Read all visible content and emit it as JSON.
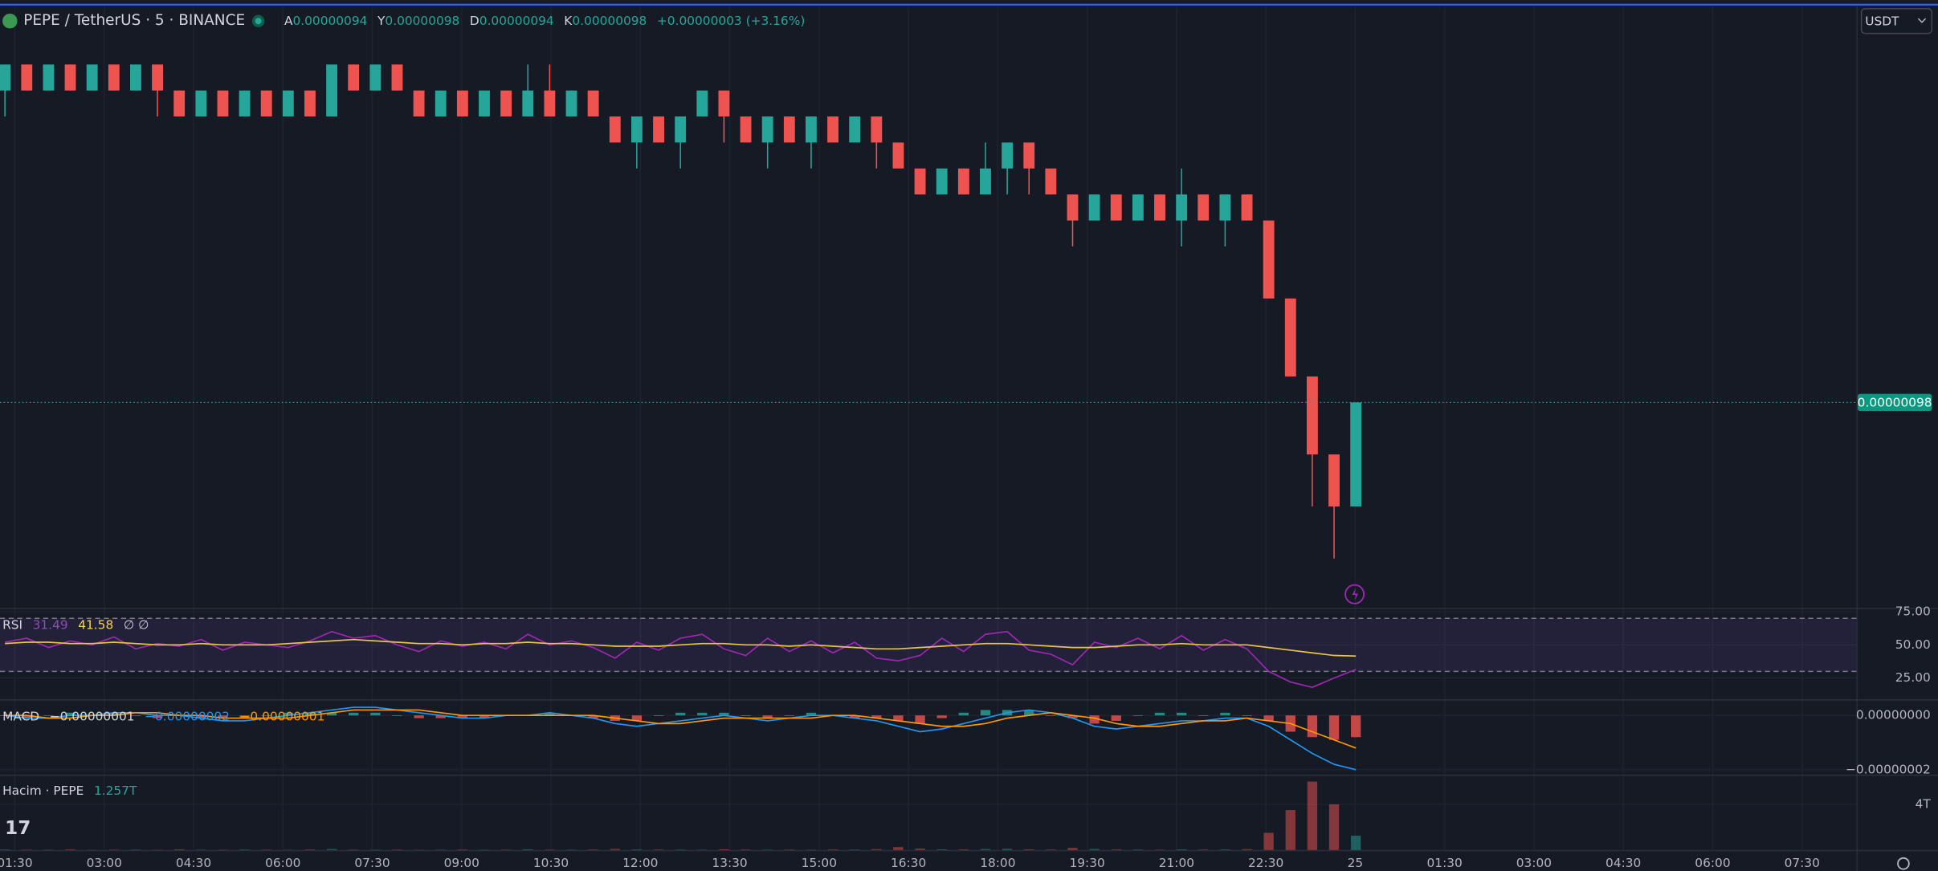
{
  "header": {
    "symbol": "PEPE / TetherUS · 5 · BINANCE",
    "ohlc": [
      {
        "key": "A",
        "value": "0.00000094"
      },
      {
        "key": "Y",
        "value": "0.00000098"
      },
      {
        "key": "D",
        "value": "0.00000094"
      },
      {
        "key": "K",
        "value": "0.00000098"
      }
    ],
    "change": "+0.00000003 (+3.16%)"
  },
  "currency": "USDT",
  "chart_data": [
    {
      "type": "candlestick",
      "up_color": "#26a69a",
      "down_color": "#ef5350",
      "ylim": [
        9.01e-07,
        1.131e-06
      ],
      "last_price_label": "0.00000098",
      "open": [
        1.1e-06,
        1.11e-06,
        1.1e-06,
        1.11e-06,
        1.1e-06,
        1.11e-06,
        1.1e-06,
        1.11e-06,
        1.1e-06,
        1.09e-06,
        1.1e-06,
        1.09e-06,
        1.1e-06,
        1.09e-06,
        1.1e-06,
        1.09e-06,
        1.11e-06,
        1.1e-06,
        1.11e-06,
        1.1e-06,
        1.09e-06,
        1.1e-06,
        1.09e-06,
        1.1e-06,
        1.09e-06,
        1.1e-06,
        1.09e-06,
        1.1e-06,
        1.09e-06,
        1.08e-06,
        1.09e-06,
        1.08e-06,
        1.09e-06,
        1.1e-06,
        1.09e-06,
        1.08e-06,
        1.09e-06,
        1.08e-06,
        1.09e-06,
        1.08e-06,
        1.09e-06,
        1.08e-06,
        1.07e-06,
        1.06e-06,
        1.07e-06,
        1.06e-06,
        1.07e-06,
        1.08e-06,
        1.07e-06,
        1.06e-06,
        1.05e-06,
        1.06e-06,
        1.05e-06,
        1.06e-06,
        1.05e-06,
        1.06e-06,
        1.05e-06,
        1.06e-06,
        1.05e-06,
        1.02e-06,
        9.9e-07,
        9.6e-07,
        9.4e-07
      ],
      "high": [
        1.11e-06,
        1.11e-06,
        1.11e-06,
        1.11e-06,
        1.11e-06,
        1.11e-06,
        1.11e-06,
        1.11e-06,
        1.1e-06,
        1.1e-06,
        1.1e-06,
        1.1e-06,
        1.1e-06,
        1.1e-06,
        1.1e-06,
        1.11e-06,
        1.11e-06,
        1.11e-06,
        1.11e-06,
        1.1e-06,
        1.1e-06,
        1.1e-06,
        1.1e-06,
        1.1e-06,
        1.11e-06,
        1.11e-06,
        1.1e-06,
        1.1e-06,
        1.09e-06,
        1.09e-06,
        1.09e-06,
        1.09e-06,
        1.1e-06,
        1.1e-06,
        1.09e-06,
        1.09e-06,
        1.09e-06,
        1.09e-06,
        1.09e-06,
        1.09e-06,
        1.09e-06,
        1.08e-06,
        1.07e-06,
        1.07e-06,
        1.07e-06,
        1.08e-06,
        1.08e-06,
        1.08e-06,
        1.07e-06,
        1.06e-06,
        1.06e-06,
        1.06e-06,
        1.06e-06,
        1.06e-06,
        1.07e-06,
        1.06e-06,
        1.06e-06,
        1.06e-06,
        1.05e-06,
        1.02e-06,
        9.9e-07,
        9.6e-07,
        9.8e-07
      ],
      "low": [
        1.09e-06,
        1.1e-06,
        1.1e-06,
        1.1e-06,
        1.1e-06,
        1.1e-06,
        1.1e-06,
        1.09e-06,
        1.09e-06,
        1.09e-06,
        1.09e-06,
        1.09e-06,
        1.09e-06,
        1.09e-06,
        1.09e-06,
        1.09e-06,
        1.1e-06,
        1.1e-06,
        1.1e-06,
        1.09e-06,
        1.09e-06,
        1.09e-06,
        1.09e-06,
        1.09e-06,
        1.09e-06,
        1.09e-06,
        1.09e-06,
        1.09e-06,
        1.08e-06,
        1.07e-06,
        1.08e-06,
        1.07e-06,
        1.09e-06,
        1.08e-06,
        1.08e-06,
        1.07e-06,
        1.08e-06,
        1.07e-06,
        1.08e-06,
        1.08e-06,
        1.07e-06,
        1.07e-06,
        1.06e-06,
        1.06e-06,
        1.06e-06,
        1.06e-06,
        1.06e-06,
        1.06e-06,
        1.06e-06,
        1.04e-06,
        1.05e-06,
        1.05e-06,
        1.05e-06,
        1.05e-06,
        1.04e-06,
        1.05e-06,
        1.04e-06,
        1.05e-06,
        1.02e-06,
        9.9e-07,
        9.4e-07,
        9.2e-07,
        9.4e-07
      ],
      "close": [
        1.11e-06,
        1.1e-06,
        1.11e-06,
        1.1e-06,
        1.11e-06,
        1.1e-06,
        1.11e-06,
        1.1e-06,
        1.09e-06,
        1.1e-06,
        1.09e-06,
        1.1e-06,
        1.09e-06,
        1.1e-06,
        1.09e-06,
        1.11e-06,
        1.1e-06,
        1.11e-06,
        1.1e-06,
        1.09e-06,
        1.1e-06,
        1.09e-06,
        1.1e-06,
        1.09e-06,
        1.1e-06,
        1.09e-06,
        1.1e-06,
        1.09e-06,
        1.08e-06,
        1.09e-06,
        1.08e-06,
        1.09e-06,
        1.1e-06,
        1.09e-06,
        1.08e-06,
        1.09e-06,
        1.08e-06,
        1.09e-06,
        1.08e-06,
        1.09e-06,
        1.08e-06,
        1.07e-06,
        1.06e-06,
        1.07e-06,
        1.06e-06,
        1.07e-06,
        1.08e-06,
        1.07e-06,
        1.06e-06,
        1.05e-06,
        1.06e-06,
        1.05e-06,
        1.06e-06,
        1.05e-06,
        1.06e-06,
        1.05e-06,
        1.06e-06,
        1.05e-06,
        1.02e-06,
        9.9e-07,
        9.6e-07,
        9.4e-07,
        9.8e-07
      ]
    },
    {
      "type": "rsi",
      "title": "RSI",
      "legend": [
        "31.49",
        "41.58",
        "∅ ∅"
      ],
      "rsi_color": "#9c27b0",
      "ma_color": "#e8c547",
      "ylim": [
        9,
        77
      ],
      "band": [
        30,
        70
      ],
      "band_color": "#7e57c2",
      "yticks": [
        {
          "value": 75,
          "label": "75.00"
        },
        {
          "value": 50,
          "label": "50.00"
        },
        {
          "value": 25,
          "label": "25.00"
        }
      ],
      "rsi": [
        52,
        55,
        48,
        53,
        50,
        56,
        47,
        51,
        49,
        54,
        46,
        52,
        50,
        48,
        53,
        60,
        55,
        57,
        50,
        45,
        53,
        49,
        52,
        47,
        58,
        50,
        53,
        48,
        40,
        52,
        46,
        55,
        58,
        47,
        42,
        55,
        45,
        53,
        44,
        52,
        40,
        38,
        42,
        55,
        45,
        58,
        60,
        46,
        43,
        35,
        52,
        48,
        55,
        47,
        57,
        46,
        54,
        47,
        30,
        22,
        18,
        25,
        31.49
      ],
      "ma": [
        51,
        52,
        52,
        51,
        51,
        52,
        51,
        50,
        50,
        51,
        50,
        50,
        50,
        51,
        52,
        53,
        54,
        53,
        52,
        51,
        51,
        50,
        51,
        51,
        52,
        51,
        51,
        50,
        49,
        49,
        49,
        50,
        51,
        51,
        50,
        50,
        49,
        50,
        49,
        48,
        47,
        47,
        48,
        49,
        50,
        51,
        51,
        50,
        49,
        48,
        48,
        49,
        50,
        50,
        51,
        50,
        50,
        50,
        48,
        46,
        44,
        42,
        41.58
      ]
    },
    {
      "type": "macd",
      "title": "MACD",
      "legend": [
        "−0.00000001",
        "−0.00000002",
        "−0.00000001"
      ],
      "macd_color": "#2196f3",
      "signal_color": "#ff9800",
      "up_color": "#26a69a",
      "down_color": "#ef5350",
      "ylim": [
        -2.18e-08,
        5.5e-09
      ],
      "yticks": [
        {
          "value": 0,
          "label": "0.00000000"
        },
        {
          "value": -2e-08,
          "label": "−0.00000002"
        }
      ],
      "histogram": [
        0,
        -1e-09,
        0,
        1e-09,
        0,
        1e-09,
        0,
        -1e-09,
        0,
        -1e-09,
        -1e-09,
        -1e-09,
        0,
        1e-09,
        1e-09,
        1e-09,
        1e-09,
        1e-09,
        0,
        -1e-09,
        -1e-09,
        -1e-09,
        -1e-09,
        0,
        0,
        1e-09,
        0,
        -1e-09,
        -2e-09,
        -2e-09,
        0,
        1e-09,
        1e-09,
        1e-09,
        0,
        -1e-09,
        0,
        1e-09,
        0,
        -1e-09,
        -1e-09,
        -2e-09,
        -3e-09,
        -1e-09,
        1e-09,
        2e-09,
        2e-09,
        2e-09,
        0,
        -1e-09,
        -3e-09,
        -2e-09,
        0,
        1e-09,
        1e-09,
        0,
        1e-09,
        0,
        -2e-09,
        -6e-09,
        -8e-09,
        -9e-09,
        -8e-09
      ],
      "macd": [
        0,
        -1e-09,
        -1e-09,
        0,
        0,
        1e-09,
        1e-09,
        0,
        0,
        -1e-09,
        -2e-09,
        -2e-09,
        -1e-09,
        0,
        1e-09,
        2e-09,
        3e-09,
        3e-09,
        2e-09,
        1e-09,
        0,
        -1e-09,
        -1e-09,
        0,
        0,
        1e-09,
        0,
        -1e-09,
        -3e-09,
        -4e-09,
        -3e-09,
        -2e-09,
        -1e-09,
        0,
        -1e-09,
        -2e-09,
        -1e-09,
        0,
        0,
        -1e-09,
        -2e-09,
        -4e-09,
        -6e-09,
        -5e-09,
        -3e-09,
        -1e-09,
        1e-09,
        2e-09,
        1e-09,
        -1e-09,
        -4e-09,
        -5e-09,
        -4e-09,
        -3e-09,
        -2e-09,
        -2e-09,
        -1e-09,
        -1e-09,
        -4e-09,
        -9e-09,
        -1.4e-08,
        -1.8e-08,
        -2e-08
      ],
      "signal": [
        0,
        0,
        -1e-09,
        -1e-09,
        0,
        0,
        1e-09,
        1e-09,
        0,
        0,
        -1e-09,
        -1e-09,
        -1e-09,
        -1e-09,
        0,
        1e-09,
        2e-09,
        2e-09,
        2e-09,
        2e-09,
        1e-09,
        0,
        0,
        0,
        0,
        0,
        0,
        0,
        -1e-09,
        -2e-09,
        -3e-09,
        -3e-09,
        -2e-09,
        -1e-09,
        -1e-09,
        -1e-09,
        -1e-09,
        -1e-09,
        0,
        0,
        -1e-09,
        -2e-09,
        -3e-09,
        -4e-09,
        -4e-09,
        -3e-09,
        -1e-09,
        0,
        1e-09,
        0,
        -1e-09,
        -3e-09,
        -4e-09,
        -4e-09,
        -3e-09,
        -2e-09,
        -2e-09,
        -1e-09,
        -2e-09,
        -3e-09,
        -6e-09,
        -9e-09,
        -1.2e-08
      ]
    },
    {
      "type": "volume",
      "title": "Hacim · PEPE",
      "legend": [
        "1.257T"
      ],
      "ylim": [
        0,
        6500000000000.0
      ],
      "yticks": [
        {
          "value": 4000000000000.0,
          "label": "4T"
        }
      ],
      "values": [
        40000000000.0,
        30000000000.0,
        25000000000.0,
        50000000000.0,
        20000000000.0,
        30000000000.0,
        35000000000.0,
        20000000000.0,
        60000000000.0,
        30000000000.0,
        25000000000.0,
        40000000000.0,
        30000000000.0,
        20000000000.0,
        45000000000.0,
        80000000000.0,
        30000000000.0,
        25000000000.0,
        35000000000.0,
        20000000000.0,
        30000000000.0,
        40000000000.0,
        25000000000.0,
        30000000000.0,
        60000000000.0,
        35000000000.0,
        30000000000.0,
        45000000000.0,
        90000000000.0,
        50000000000.0,
        40000000000.0,
        35000000000.0,
        30000000000.0,
        60000000000.0,
        40000000000.0,
        30000000000.0,
        35000000000.0,
        25000000000.0,
        50000000000.0,
        40000000000.0,
        70000000000.0,
        250000000000.0,
        120000000000.0,
        60000000000.0,
        50000000000.0,
        80000000000.0,
        100000000000.0,
        60000000000.0,
        40000000000.0,
        180000000000.0,
        90000000000.0,
        50000000000.0,
        40000000000.0,
        30000000000.0,
        60000000000.0,
        40000000000.0,
        50000000000.0,
        70000000000.0,
        1500000000000.0,
        3500000000000.0,
        6000000000000.0,
        4000000000000.0,
        1257000000000.0
      ]
    }
  ],
  "time_axis": {
    "grid": true,
    "labels": [
      "01:30",
      "03:00",
      "04:30",
      "06:00",
      "07:30",
      "09:00",
      "10:30",
      "12:00",
      "13:30",
      "15:00",
      "16:30",
      "18:00",
      "19:30",
      "21:00",
      "22:30",
      "25",
      "01:30",
      "03:00",
      "04:30",
      "06:00",
      "07:30"
    ]
  }
}
